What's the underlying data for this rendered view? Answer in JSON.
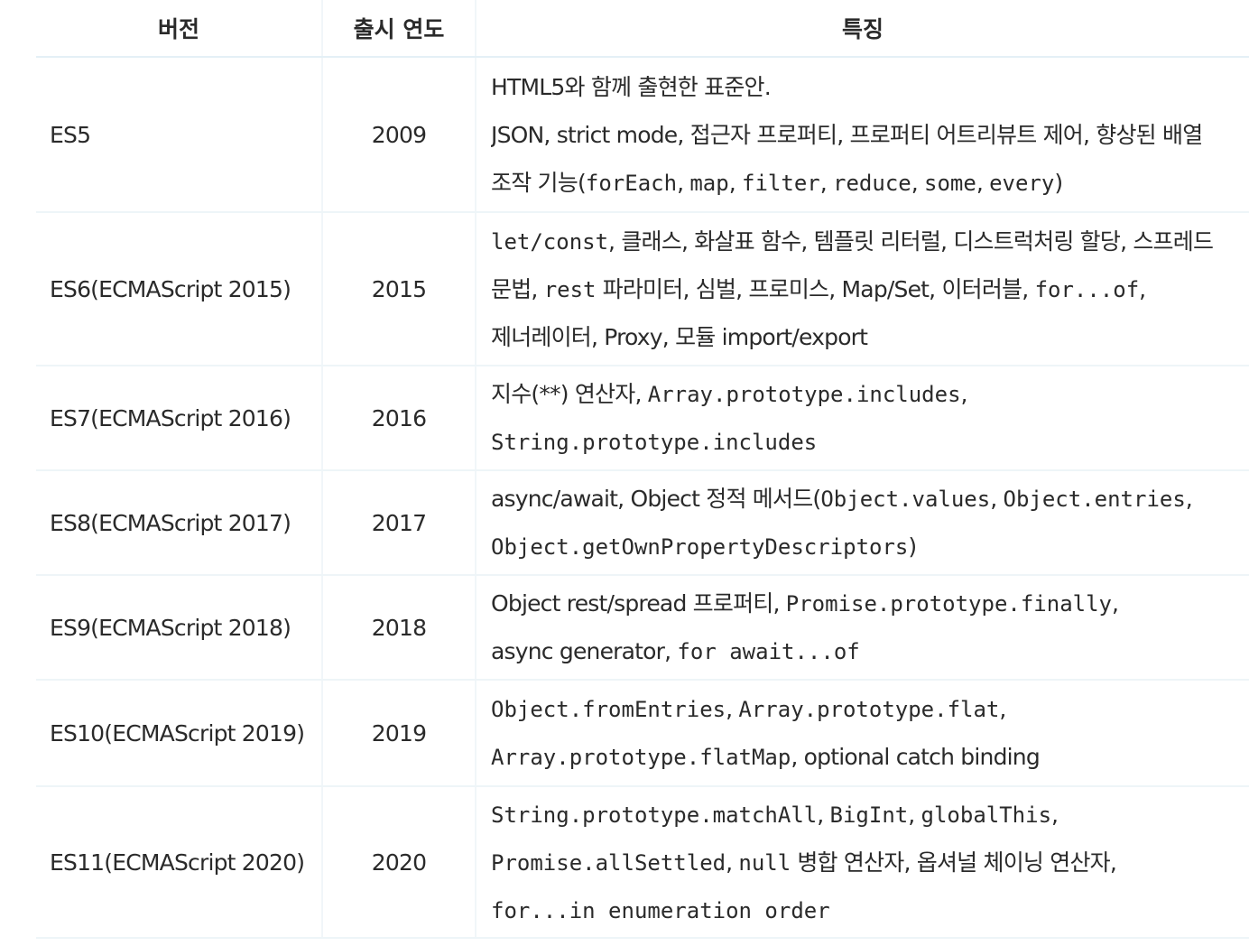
{
  "table": {
    "headers": {
      "version": "버전",
      "year": "출시 연도",
      "features": "특징"
    },
    "rows": [
      {
        "version": "ES5",
        "year": "2009",
        "lines": [
          [
            {
              "t": "HTML5와 함께 출현한 표준안."
            }
          ],
          [
            {
              "t": "JSON, strict mode, 접근자 프로퍼티, 프로퍼티 어트리뷰트 제어, 향상된 배열"
            }
          ],
          [
            {
              "t": "조작 기능("
            },
            {
              "t": "forEach",
              "m": true
            },
            {
              "t": ", "
            },
            {
              "t": "map",
              "m": true
            },
            {
              "t": ", "
            },
            {
              "t": "filter",
              "m": true
            },
            {
              "t": ", "
            },
            {
              "t": "reduce",
              "m": true
            },
            {
              "t": ", "
            },
            {
              "t": "some",
              "m": true
            },
            {
              "t": ", "
            },
            {
              "t": "every",
              "m": true
            },
            {
              "t": ")"
            }
          ]
        ]
      },
      {
        "version": "ES6(ECMAScript 2015)",
        "year": "2015",
        "lines": [
          [
            {
              "t": "let/const",
              "m": true
            },
            {
              "t": ", 클래스, 화살표 함수, 템플릿 리터럴, 디스트럭처링 할당, 스프레드"
            }
          ],
          [
            {
              "t": "문법, "
            },
            {
              "t": "rest",
              "m": true
            },
            {
              "t": " 파라미터, 심벌, 프로미스, Map/Set, 이터러블, "
            },
            {
              "t": "for...of",
              "m": true
            },
            {
              "t": ","
            }
          ],
          [
            {
              "t": "제너레이터, Proxy, 모듈 import/export"
            }
          ]
        ]
      },
      {
        "version": "ES7(ECMAScript 2016)",
        "year": "2016",
        "lines": [
          [
            {
              "t": "지수(**) 연산자, "
            },
            {
              "t": "Array.prototype.includes",
              "m": true
            },
            {
              "t": ","
            }
          ],
          [
            {
              "t": "String.prototype.includes",
              "m": true
            }
          ]
        ]
      },
      {
        "version": "ES8(ECMAScript 2017)",
        "year": "2017",
        "lines": [
          [
            {
              "t": "async/await, Object 정적 메서드("
            },
            {
              "t": "Object.values",
              "m": true
            },
            {
              "t": ", "
            },
            {
              "t": "Object.entries",
              "m": true
            },
            {
              "t": ","
            }
          ],
          [
            {
              "t": "Object.getOwnPropertyDescriptors",
              "m": true
            },
            {
              "t": ")"
            }
          ]
        ]
      },
      {
        "version": "ES9(ECMAScript 2018)",
        "year": "2018",
        "lines": [
          [
            {
              "t": "Object rest/spread 프로퍼티, "
            },
            {
              "t": "Promise.prototype.finally",
              "m": true
            },
            {
              "t": ","
            }
          ],
          [
            {
              "t": "async generator, "
            },
            {
              "t": "for await...of",
              "m": true
            }
          ]
        ]
      },
      {
        "version": "ES10(ECMAScript 2019)",
        "year": "2019",
        "lines": [
          [
            {
              "t": "Object.fromEntries",
              "m": true
            },
            {
              "t": ", "
            },
            {
              "t": "Array.prototype.flat",
              "m": true
            },
            {
              "t": ","
            }
          ],
          [
            {
              "t": "Array.prototype.flatMap",
              "m": true
            },
            {
              "t": ", optional catch binding"
            }
          ]
        ]
      },
      {
        "version": "ES11(ECMAScript 2020)",
        "year": "2020",
        "lines": [
          [
            {
              "t": "String.prototype.matchAll",
              "m": true
            },
            {
              "t": ", "
            },
            {
              "t": "BigInt",
              "m": true
            },
            {
              "t": ", "
            },
            {
              "t": "globalThis",
              "m": true
            },
            {
              "t": ","
            }
          ],
          [
            {
              "t": "Promise.allSettled",
              "m": true
            },
            {
              "t": ", "
            },
            {
              "t": "null",
              "m": true
            },
            {
              "t": " 병합 연산자, 옵셔널 체이닝 연산자,"
            }
          ],
          [
            {
              "t": "for...in enumeration order",
              "m": true
            }
          ]
        ]
      }
    ]
  }
}
